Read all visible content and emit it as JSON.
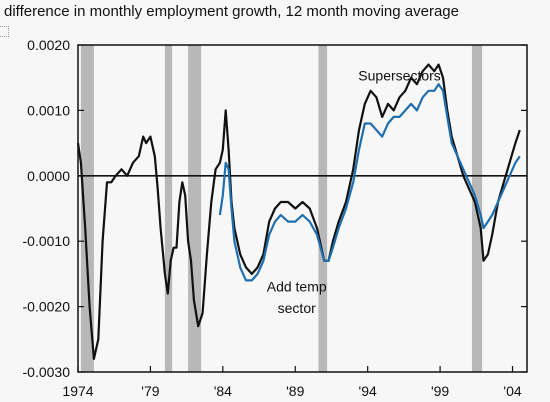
{
  "chart_data": {
    "type": "line",
    "title": "difference in monthly employment growth, 12 month moving average",
    "xlabel": "",
    "ylabel": "",
    "xlim": [
      1974.0,
      2005.0
    ],
    "ylim": [
      -0.003,
      0.002
    ],
    "x_tick_values": [
      1974,
      1979,
      1984,
      1989,
      1994,
      1999,
      2004
    ],
    "x_tick_labels": [
      "1974",
      "'79",
      "'84",
      "'89",
      "'94",
      "'99",
      "'04"
    ],
    "y_tick_values": [
      0.002,
      0.001,
      0.0,
      -0.001,
      -0.002,
      -0.003
    ],
    "y_tick_labels": [
      "0.0020",
      "0.0010",
      "0.0000",
      "-0.0010",
      "-0.0020",
      "-0.0030"
    ],
    "zero_line": true,
    "grid": false,
    "recessions": [
      {
        "start": 1974.2,
        "end": 1975.1
      },
      {
        "start": 1980.0,
        "end": 1980.5
      },
      {
        "start": 1981.6,
        "end": 1982.5
      },
      {
        "start": 1990.6,
        "end": 1991.2
      },
      {
        "start": 2001.2,
        "end": 2001.9
      }
    ],
    "annotations": [
      {
        "text": "Supersectors",
        "x": 1996.2,
        "y": 0.00146
      },
      {
        "text": "Add temp",
        "x": 1989.1,
        "y": -0.00177
      },
      {
        "text": "sector",
        "x": 1989.1,
        "y": -0.0021
      }
    ],
    "series": [
      {
        "color": "#111111",
        "x": [
          1974.0,
          1974.2,
          1974.5,
          1974.8,
          1975.1,
          1975.4,
          1975.7,
          1976.0,
          1976.3,
          1976.6,
          1977.0,
          1977.4,
          1977.8,
          1978.2,
          1978.5,
          1978.7,
          1979.0,
          1979.3,
          1979.5,
          1979.7,
          1980.0,
          1980.2,
          1980.4,
          1980.6,
          1980.8,
          1981.0,
          1981.2,
          1981.4,
          1981.6,
          1981.8,
          1982.0,
          1982.3,
          1982.6,
          1982.9,
          1983.2,
          1983.5,
          1983.8,
          1984.0,
          1984.2,
          1984.4,
          1984.6,
          1984.8,
          1985.2,
          1985.6,
          1986.0,
          1986.4,
          1986.8,
          1987.2,
          1987.6,
          1988.0,
          1988.5,
          1989.0,
          1989.5,
          1990.0,
          1990.5,
          1991.0,
          1991.3,
          1991.6,
          1992.0,
          1992.5,
          1993.0,
          1993.4,
          1993.8,
          1994.2,
          1994.6,
          1995.0,
          1995.4,
          1995.8,
          1996.2,
          1996.6,
          1997.0,
          1997.4,
          1997.8,
          1998.2,
          1998.6,
          1998.9,
          1999.2,
          1999.5,
          1999.8,
          2000.2,
          2000.6,
          2001.0,
          2001.4,
          2001.8,
          2002.0,
          2002.3,
          2002.6,
          2003.0,
          2003.4,
          2003.8,
          2004.2,
          2004.5
        ],
        "values": [
          0.0005,
          0.0002,
          -0.0008,
          -0.002,
          -0.0028,
          -0.0025,
          -0.001,
          -0.0001,
          -0.0001,
          0.0,
          0.0001,
          0.0,
          0.0002,
          0.0003,
          0.0006,
          0.0005,
          0.0006,
          0.0003,
          -0.0002,
          -0.0008,
          -0.0015,
          -0.0018,
          -0.0013,
          -0.0011,
          -0.0011,
          -0.0004,
          -0.0001,
          -0.0003,
          -0.001,
          -0.0013,
          -0.0019,
          -0.0023,
          -0.0021,
          -0.0012,
          -0.0004,
          0.0001,
          0.0002,
          0.0004,
          0.001,
          0.0004,
          -0.0004,
          -0.0008,
          -0.0012,
          -0.0014,
          -0.0015,
          -0.0014,
          -0.0012,
          -0.0007,
          -0.0005,
          -0.0004,
          -0.0004,
          -0.0005,
          -0.0004,
          -0.0005,
          -0.0008,
          -0.0013,
          -0.0013,
          -0.001,
          -0.0007,
          -0.0004,
          0.0001,
          0.0007,
          0.0011,
          0.0013,
          0.0012,
          0.0009,
          0.0011,
          0.001,
          0.0012,
          0.0013,
          0.0015,
          0.0014,
          0.0016,
          0.0017,
          0.0016,
          0.0017,
          0.0015,
          0.001,
          0.0006,
          0.0003,
          0.0,
          -0.0002,
          -0.0004,
          -0.0008,
          -0.0013,
          -0.0012,
          -0.0009,
          -0.0004,
          -0.0001,
          0.0002,
          0.0005,
          0.0007
        ]
      },
      {
        "color": "#1f6fb0",
        "x": [
          1983.8,
          1984.0,
          1984.2,
          1984.4,
          1984.6,
          1984.8,
          1985.2,
          1985.6,
          1986.0,
          1986.4,
          1986.8,
          1987.2,
          1987.6,
          1988.0,
          1988.5,
          1989.0,
          1989.5,
          1990.0,
          1990.5,
          1991.0,
          1991.3,
          1991.6,
          1992.0,
          1992.5,
          1993.0,
          1993.4,
          1993.8,
          1994.2,
          1994.6,
          1995.0,
          1995.4,
          1995.8,
          1996.2,
          1996.6,
          1997.0,
          1997.4,
          1997.8,
          1998.2,
          1998.6,
          1998.9,
          1999.2,
          1999.5,
          1999.8,
          2000.2,
          2000.6,
          2001.0,
          2001.4,
          2001.8,
          2002.0,
          2002.3,
          2002.6,
          2003.0,
          2003.4,
          2003.8,
          2004.2,
          2004.5
        ],
        "values": [
          -0.0006,
          -0.0003,
          0.0002,
          0.0001,
          -0.0005,
          -0.001,
          -0.0014,
          -0.0016,
          -0.0016,
          -0.0015,
          -0.0013,
          -0.0009,
          -0.0007,
          -0.0006,
          -0.0007,
          -0.0007,
          -0.0006,
          -0.0007,
          -0.0009,
          -0.0013,
          -0.0013,
          -0.0011,
          -0.0008,
          -0.0005,
          -0.0001,
          0.0004,
          0.0008,
          0.0008,
          0.0007,
          0.0006,
          0.0008,
          0.0009,
          0.0009,
          0.001,
          0.0011,
          0.001,
          0.0012,
          0.0013,
          0.0013,
          0.0014,
          0.0013,
          0.0009,
          0.0005,
          0.0003,
          0.0001,
          -0.0001,
          -0.0003,
          -0.0006,
          -0.0008,
          -0.0007,
          -0.0006,
          -0.0004,
          -0.0002,
          0.0,
          0.0002,
          0.0003
        ]
      }
    ]
  }
}
